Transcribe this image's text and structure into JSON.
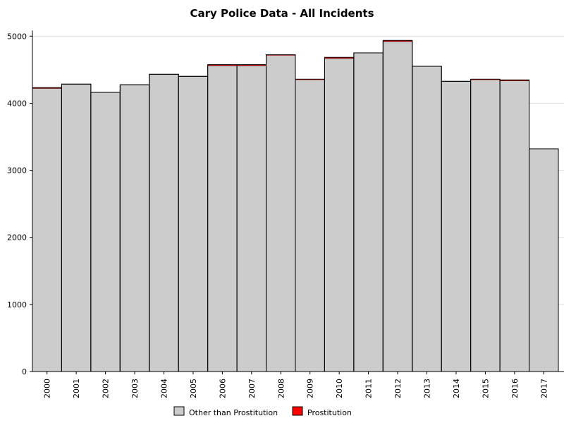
{
  "chart_data": {
    "type": "bar",
    "stacked": true,
    "title": "Cary Police Data - All Incidents",
    "xlabel": "",
    "ylabel": "",
    "ylim": [
      0,
      5000
    ],
    "yticks": [
      0,
      1000,
      2000,
      3000,
      4000,
      5000
    ],
    "grid": true,
    "legend_position": "bottom",
    "categories": [
      "2000",
      "2001",
      "2002",
      "2003",
      "2004",
      "2005",
      "2006",
      "2007",
      "2008",
      "2009",
      "2010",
      "2011",
      "2012",
      "2013",
      "2014",
      "2015",
      "2016",
      "2017"
    ],
    "series": [
      {
        "name": "Other than Prostitution",
        "color": "#cccccc",
        "values": [
          4223,
          4285,
          4162,
          4275,
          4432,
          4401,
          4561,
          4561,
          4718,
          4354,
          4670,
          4751,
          4922,
          4551,
          4327,
          4354,
          4336,
          3321
        ]
      },
      {
        "name": "Prostitution",
        "color": "#ff0000",
        "values": [
          10,
          0,
          0,
          0,
          0,
          0,
          15,
          15,
          5,
          5,
          15,
          0,
          15,
          0,
          0,
          5,
          12,
          0
        ]
      }
    ]
  }
}
